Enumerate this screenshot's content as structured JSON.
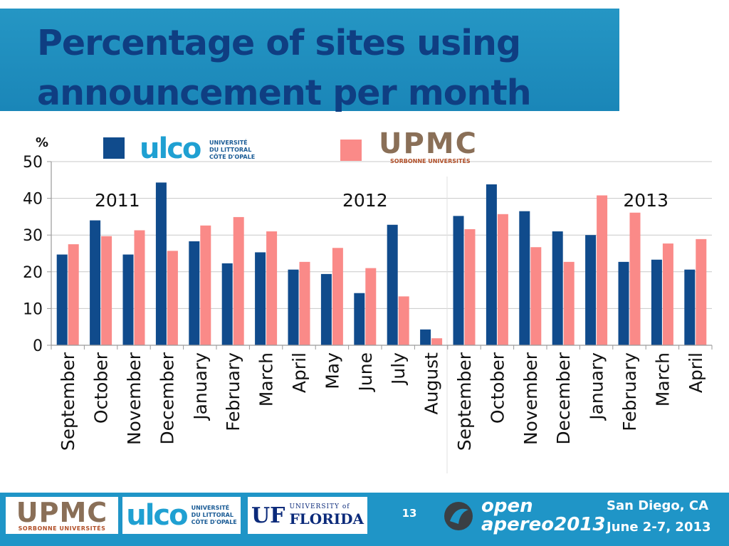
{
  "slide": {
    "title": "Percentage of sites  using announcement per month",
    "page_number": "13"
  },
  "footer": {
    "upmc_logo": "UPMC",
    "upmc_logo_sub": "SORBONNE UNIVERSITÉS",
    "ulco_logo": "ulco",
    "ulco_logo_sub": [
      "UNIVERSITÉ",
      "DU LITTORAL",
      "CÔTE D'OPALE"
    ],
    "uf_logo_mark": "UF",
    "uf_logo_line1": "UNIVERSITY of",
    "uf_logo_line2": "FLORIDA",
    "apereo_line1": "open",
    "apereo_line2": "apereo2013",
    "location": "San Diego, CA",
    "dates": "June 2-7, 2013"
  },
  "colors": {
    "ulco": "#104b8c",
    "upmc": "#fa8a88",
    "grid": "#c8c8c8",
    "axis": "#9a9a9a",
    "title": "#0f3e82",
    "band": "#1f8fc0"
  },
  "chart_data": {
    "type": "bar",
    "ylabel": "%",
    "ylim": [
      0,
      50
    ],
    "yticks": [
      0,
      10,
      20,
      30,
      40,
      50
    ],
    "grid": true,
    "categories": [
      "September",
      "October",
      "November",
      "December",
      "January",
      "February",
      "March",
      "April",
      "May",
      "June",
      "July",
      "August",
      "September",
      "October",
      "November",
      "December",
      "January",
      "February",
      "March",
      "April"
    ],
    "year_labels": [
      {
        "label": "2011",
        "category_index": 1.5
      },
      {
        "label": "2012",
        "category_index": 9
      },
      {
        "label": "2013",
        "category_index": 17.5
      }
    ],
    "series": [
      {
        "legend_logo": "ulco",
        "legend_logo_sub": [
          "UNIVERSITÉ",
          "DU LITTORAL",
          "CÔTE D'OPALE"
        ],
        "color": "#104b8c",
        "values": [
          24.7,
          34.0,
          24.7,
          44.3,
          28.3,
          22.3,
          25.3,
          20.6,
          19.4,
          14.2,
          32.8,
          4.3,
          35.2,
          43.8,
          36.5,
          31.0,
          30.0,
          22.7,
          23.3,
          20.6
        ]
      },
      {
        "legend_logo": "UPMC",
        "legend_logo_sub": "SORBONNE UNIVERSITÉS",
        "color": "#fa8a88",
        "values": [
          27.5,
          29.7,
          31.3,
          25.7,
          32.6,
          34.9,
          31.0,
          22.7,
          26.5,
          21.0,
          13.3,
          1.9,
          31.6,
          35.7,
          26.7,
          22.7,
          40.8,
          36.1,
          27.7,
          28.9
        ]
      }
    ],
    "legend_position": "top"
  }
}
